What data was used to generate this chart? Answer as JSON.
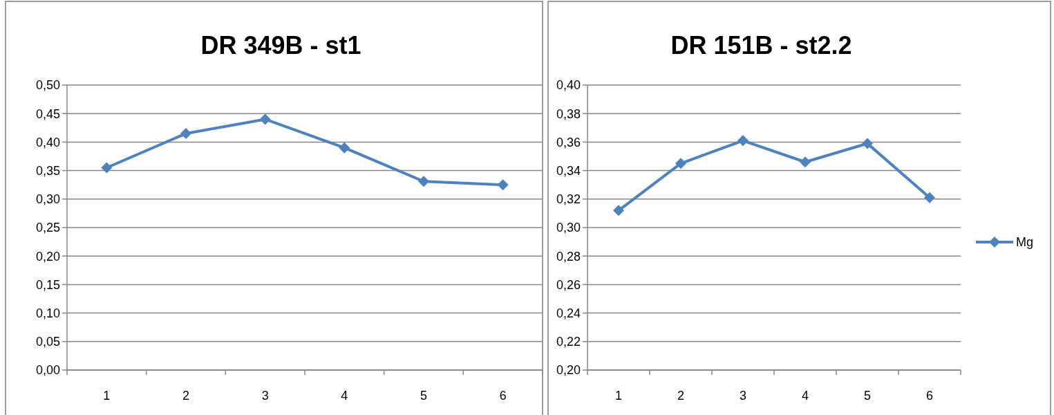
{
  "chart_data": [
    {
      "type": "line",
      "title": "DR 349B - st1",
      "categories": [
        "1",
        "2",
        "3",
        "4",
        "5",
        "6"
      ],
      "series": [
        {
          "color": "#4f81bd",
          "values": [
            0.355,
            0.415,
            0.44,
            0.39,
            0.331,
            0.325
          ]
        }
      ],
      "ylim": [
        0,
        0.5
      ],
      "yticks": [
        {
          "value": 0,
          "label": "0,00"
        },
        {
          "value": 0.05,
          "label": "0,05"
        },
        {
          "value": 0.1,
          "label": "0,10"
        },
        {
          "value": 0.15,
          "label": "0,15"
        },
        {
          "value": 0.2,
          "label": "0,20"
        },
        {
          "value": 0.25,
          "label": "0,25"
        },
        {
          "value": 0.3,
          "label": "0,30"
        },
        {
          "value": 0.35,
          "label": "0,35"
        },
        {
          "value": 0.4,
          "label": "0,40"
        },
        {
          "value": 0.45,
          "label": "0,45"
        },
        {
          "value": 0.5,
          "label": "0,50"
        }
      ],
      "grid": "y",
      "marker": "diamond",
      "legend": false
    },
    {
      "type": "line",
      "title": "DR 151B - st2.2",
      "categories": [
        "1",
        "2",
        "3",
        "4",
        "5",
        "6"
      ],
      "series": [
        {
          "name": "Mg",
          "color": "#4f81bd",
          "values": [
            0.312,
            0.345,
            0.361,
            0.346,
            0.359,
            0.321
          ]
        }
      ],
      "ylim": [
        0.2,
        0.4
      ],
      "yticks": [
        {
          "value": 0.2,
          "label": "0,20"
        },
        {
          "value": 0.22,
          "label": "0,22"
        },
        {
          "value": 0.24,
          "label": "0,24"
        },
        {
          "value": 0.26,
          "label": "0,26"
        },
        {
          "value": 0.28,
          "label": "0,28"
        },
        {
          "value": 0.3,
          "label": "0,30"
        },
        {
          "value": 0.32,
          "label": "0,32"
        },
        {
          "value": 0.34,
          "label": "0,34"
        },
        {
          "value": 0.36,
          "label": "0,36"
        },
        {
          "value": 0.38,
          "label": "0,38"
        },
        {
          "value": 0.4,
          "label": "0,40"
        }
      ],
      "grid": "y",
      "marker": "diamond",
      "legend": "right"
    }
  ]
}
